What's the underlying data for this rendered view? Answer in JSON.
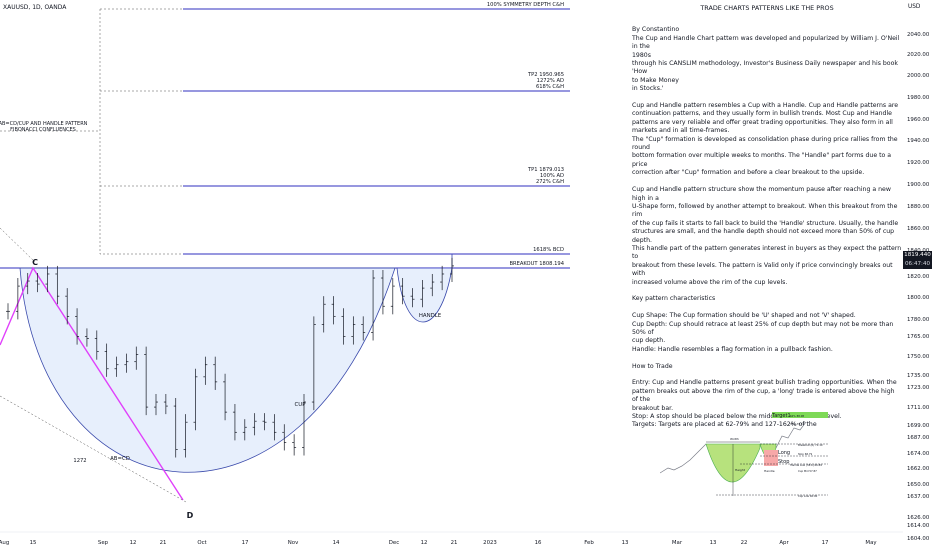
{
  "symbol_label": "XAUUSD, 1D, OANDA",
  "currency": "USD",
  "price_tag": {
    "price": "1819.440",
    "countdown": "06:47:40"
  },
  "article": {
    "title": "TRADE CHARTS PATTERNS LIKE THE PROS",
    "paragraphs": [
      [
        "By Constantino",
        "The Cup and Handle Chart pattern was developed and popularized by William J. O'Neil in the",
        "1980s",
        "through his CANSLIM methodology, Investor's Business Daily newspaper and his book 'How",
        "to Make Money",
        "in Stocks.'"
      ],
      [
        "Cup and Handle pattern resembles a Cup with a Handle. Cup and Handle patterns are",
        "continuation patterns, and they usually form in bullish trends. Most Cup and Handle",
        "patterns are very reliable and offer great trading opportunities. They also form in all",
        "markets and in all time-frames.",
        "The \"Cup\" formation is developed as consolidation phase during price rallies from the round",
        "bottom formation over multiple weeks to months. The \"Handle\" part forms due to a price",
        "correction after \"Cup\" formation and before a clear breakout to the upside."
      ],
      [
        "Cup and Handle pattern structure show the momentum pause after reaching a new high in a",
        "U-Shape form, followed by another attempt to breakout. When this breakout from the rim",
        "of the cup fails it starts to fall back to build the 'Handle' structure. Usually, the handle",
        "structures are small, and the handle depth should not exceed more than 50% of cup depth.",
        "This handle part of the pattern generates interest in buyers as they expect the pattern to",
        "breakout from these levels. The pattern is Valid only if price convincingly breaks out with",
        "increased volume above the rim of the cup levels."
      ],
      [
        "Key pattern characteristics"
      ],
      [
        "Cup Shape: The Cup formation should be 'U' shaped and not 'V' shaped.",
        "Cup Depth: Cup should retrace at least 25% of cup depth but may not be more than 50% of",
        "cup depth.",
        "Handle: Handle resembles a flag formation in a pullback fashion."
      ],
      [
        "How to Trade"
      ],
      [
        "Entry: Cup and Handle patterns present great bullish trading opportunities. When the",
        "pattern breaks out above the rim of the cup, a 'long' trade is entered above the high of the",
        "breakout bar.",
        "Stop: A stop should be placed below the middle of the handle level.",
        "Targets: Targets are placed at 62-79% and 127-162% of the"
      ]
    ]
  },
  "levels": [
    {
      "label": "100% SYMMETRY DEPTH C&H",
      "price": 2044
    },
    {
      "label": "TP2 1950.965",
      "sub": [
        "1272% AD",
        "618% C&H"
      ],
      "price": 1950.965
    },
    {
      "label": "TP1 1879.013",
      "sub": [
        "100% AD",
        "272% C&H"
      ],
      "price": 1879.013
    },
    {
      "label": "1618% BCD",
      "price": 1820
    },
    {
      "label": "BREAKOUT 1808.194",
      "price": 1808.194
    }
  ],
  "annotations": {
    "confluence": [
      "AB=CD/CUP AND HANDLE PATTERN",
      "FIBONACCI CONFLUENCES"
    ],
    "point_c": "C",
    "point_d": "D",
    "abcd": "AB=CD",
    "cup": "CUP",
    "handle": "HANDLE",
    "fib_1272": "1272"
  },
  "inset": {
    "target": "Target1",
    "long": "Long",
    "stop": "Stop",
    "width": "Width",
    "height": "Height",
    "handle": "Handle",
    "cup_mid": "Cup Mid",
    "cup_low": "Cup Low",
    "breakout": "Breakout",
    "labels_small": [
      "62% 88.08",
      "38% 79.33",
      "Breakout (R) 71.10",
      "Stop 68.79",
      "Handle Low (38.6) 66.89",
      "Cup Mid 57.87",
      "Cup Low 40.00"
    ]
  },
  "chart_data": {
    "type": "line",
    "title": "XAUUSD, 1D, OANDA",
    "y_axis": {
      "unit": "USD",
      "ylim": [
        1592,
        2052
      ],
      "ticks": [
        2040,
        2020,
        2000,
        1980,
        1960,
        1940,
        1920,
        1900,
        1880,
        1860,
        1840,
        1820,
        1800,
        1780,
        1765,
        1750,
        1735,
        1723,
        1711,
        1699,
        1687,
        1674,
        1662,
        1650,
        1637,
        1626,
        1614,
        1604
      ]
    },
    "x_axis": {
      "ticks": [
        "Aug",
        "15",
        "Sep",
        "12",
        "21",
        "Oct",
        "17",
        "Nov",
        "14",
        "Dec",
        "12",
        "21",
        "2023",
        "16",
        "Feb",
        "13",
        "Mar",
        "13",
        "22",
        "Apr",
        "17",
        "May"
      ]
    },
    "series": [
      {
        "name": "",
        "points": [
          [
            "Aug 01",
            1765
          ],
          [
            "Aug 04",
            1790
          ],
          [
            "Aug 08",
            1795
          ],
          [
            "Aug 10",
            1792
          ],
          [
            "Aug 12",
            1802
          ],
          [
            "Aug 15",
            1780
          ],
          [
            "Aug 18",
            1760
          ],
          [
            "Aug 22",
            1740
          ],
          [
            "Aug 25",
            1738
          ],
          [
            "Aug 29",
            1725
          ],
          [
            "Sep 01",
            1708
          ],
          [
            "Sep 05",
            1712
          ],
          [
            "Sep 08",
            1715
          ],
          [
            "Sep 12",
            1722
          ],
          [
            "Sep 15",
            1670
          ],
          [
            "Sep 19",
            1675
          ],
          [
            "Sep 22",
            1671
          ],
          [
            "Sep 26",
            1628
          ],
          [
            "Sep 28",
            1655
          ],
          [
            "Oct 03",
            1700
          ],
          [
            "Oct 05",
            1712
          ],
          [
            "Oct 07",
            1695
          ],
          [
            "Oct 11",
            1665
          ],
          [
            "Oct 14",
            1645
          ],
          [
            "Oct 18",
            1650
          ],
          [
            "Oct 21",
            1656
          ],
          [
            "Oct 25",
            1655
          ],
          [
            "Oct 28",
            1645
          ],
          [
            "Nov 01",
            1635
          ],
          [
            "Nov 03",
            1630
          ],
          [
            "Nov 07",
            1675
          ],
          [
            "Nov 10",
            1752
          ],
          [
            "Nov 14",
            1772
          ],
          [
            "Nov 17",
            1760
          ],
          [
            "Nov 21",
            1740
          ],
          [
            "Nov 24",
            1752
          ],
          [
            "Nov 28",
            1744
          ],
          [
            "Dec 01",
            1798
          ],
          [
            "Dec 05",
            1770
          ],
          [
            "Dec 08",
            1790
          ],
          [
            "Dec 12",
            1780
          ],
          [
            "Dec 15",
            1777
          ],
          [
            "Dec 19",
            1788
          ],
          [
            "Dec 22",
            1794
          ],
          [
            "Dec 26",
            1802
          ],
          [
            "Dec 28",
            1810
          ]
        ]
      }
    ]
  }
}
